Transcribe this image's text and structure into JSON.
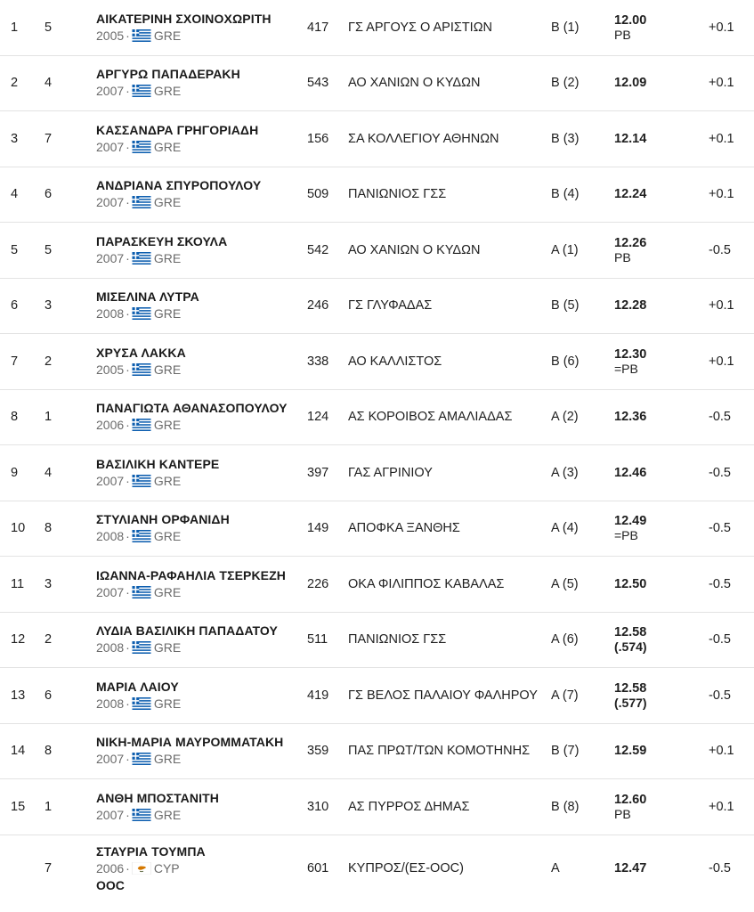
{
  "rows": [
    {
      "rank": "1",
      "lane": "5",
      "name": "ΑΙΚΑΤΕΡΙΝΗ ΣΧΟΙΝΟΧΩΡΙΤΗ",
      "year": "2005",
      "country": "GRE",
      "flag": "greece-flag",
      "bib": "417",
      "club": "ΓΣ ΑΡΓΟΥΣ Ο ΑΡΙΣΤΙΩΝ",
      "heat": "Β (1)",
      "mark": "12.00",
      "note": "PB",
      "wind": "+0.1"
    },
    {
      "rank": "2",
      "lane": "4",
      "name": "ΑΡΓΥΡΩ ΠΑΠΑΔΕΡΑΚΗ",
      "year": "2007",
      "country": "GRE",
      "flag": "greece-flag",
      "bib": "543",
      "club": "ΑΟ ΧΑΝΙΩΝ Ο ΚΥΔΩΝ",
      "heat": "Β (2)",
      "mark": "12.09",
      "note": "",
      "wind": "+0.1"
    },
    {
      "rank": "3",
      "lane": "7",
      "name": "ΚΑΣΣΑΝΔΡΑ ΓΡΗΓΟΡΙΑΔΗ",
      "year": "2007",
      "country": "GRE",
      "flag": "greece-flag",
      "bib": "156",
      "club": "ΣΑ ΚΟΛΛΕΓΙΟΥ ΑΘΗΝΩΝ",
      "heat": "Β (3)",
      "mark": "12.14",
      "note": "",
      "wind": "+0.1"
    },
    {
      "rank": "4",
      "lane": "6",
      "name": "ΑΝΔΡΙΑΝΑ ΣΠΥΡΟΠΟΥΛΟΥ",
      "year": "2007",
      "country": "GRE",
      "flag": "greece-flag",
      "bib": "509",
      "club": "ΠΑΝΙΩΝΙΟΣ ΓΣΣ",
      "heat": "Β (4)",
      "mark": "12.24",
      "note": "",
      "wind": "+0.1"
    },
    {
      "rank": "5",
      "lane": "5",
      "name": "ΠΑΡΑΣΚΕΥΗ ΣΚΟΥΛΑ",
      "year": "2007",
      "country": "GRE",
      "flag": "greece-flag",
      "bib": "542",
      "club": "ΑΟ ΧΑΝΙΩΝ Ο ΚΥΔΩΝ",
      "heat": "Α (1)",
      "mark": "12.26",
      "note": "PB",
      "wind": "-0.5"
    },
    {
      "rank": "6",
      "lane": "3",
      "name": "ΜΙΣΕΛΙΝΑ ΛΥΤΡΑ",
      "year": "2008",
      "country": "GRE",
      "flag": "greece-flag",
      "bib": "246",
      "club": "ΓΣ ΓΛΥΦΑΔΑΣ",
      "heat": "Β (5)",
      "mark": "12.28",
      "note": "",
      "wind": "+0.1"
    },
    {
      "rank": "7",
      "lane": "2",
      "name": "ΧΡΥΣΑ ΛΑΚΚΑ",
      "year": "2005",
      "country": "GRE",
      "flag": "greece-flag",
      "bib": "338",
      "club": "ΑΟ ΚΑΛΛΙΣΤΟΣ",
      "heat": "Β (6)",
      "mark": "12.30",
      "note": "=PB",
      "wind": "+0.1"
    },
    {
      "rank": "8",
      "lane": "1",
      "name": "ΠΑΝΑΓΙΩΤΑ ΑΘΑΝΑΣΟΠΟΥΛΟΥ",
      "year": "2006",
      "country": "GRE",
      "flag": "greece-flag",
      "bib": "124",
      "club": "ΑΣ ΚΟΡΟΙΒΟΣ ΑΜΑΛΙΑΔΑΣ",
      "heat": "Α (2)",
      "mark": "12.36",
      "note": "",
      "wind": "-0.5"
    },
    {
      "rank": "9",
      "lane": "4",
      "name": "ΒΑΣΙΛΙΚΗ ΚΑΝΤΕΡΕ",
      "year": "2007",
      "country": "GRE",
      "flag": "greece-flag",
      "bib": "397",
      "club": "ΓΑΣ ΑΓΡΙΝΙΟΥ",
      "heat": "Α (3)",
      "mark": "12.46",
      "note": "",
      "wind": "-0.5"
    },
    {
      "rank": "10",
      "lane": "8",
      "name": "ΣΤΥΛΙΑΝΗ ΟΡΦΑΝΙΔΗ",
      "year": "2008",
      "country": "GRE",
      "flag": "greece-flag",
      "bib": "149",
      "club": "ΑΠΟΦΚΑ ΞΑΝΘΗΣ",
      "heat": "Α (4)",
      "mark": "12.49",
      "note": "=PB",
      "wind": "-0.5"
    },
    {
      "rank": "11",
      "lane": "3",
      "name": "ΙΩΑΝΝΑ-ΡΑΦΑΗΛΙΑ ΤΣΕΡΚΕΖΗ",
      "year": "2007",
      "country": "GRE",
      "flag": "greece-flag",
      "bib": "226",
      "club": "ΟΚΑ ΦΙΛΙΠΠΟΣ ΚΑΒΑΛΑΣ",
      "heat": "Α (5)",
      "mark": "12.50",
      "note": "",
      "wind": "-0.5"
    },
    {
      "rank": "12",
      "lane": "2",
      "name": "ΛΥΔΙΑ ΒΑΣΙΛΙΚΗ ΠΑΠΑΔΑΤΟΥ",
      "year": "2008",
      "country": "GRE",
      "flag": "greece-flag",
      "bib": "511",
      "club": "ΠΑΝΙΩΝΙΟΣ ΓΣΣ",
      "heat": "Α (6)",
      "mark": "12.58",
      "note": "(.574)",
      "wind": "-0.5"
    },
    {
      "rank": "13",
      "lane": "6",
      "name": "ΜΑΡΙΑ ΛΑΙΟΥ",
      "year": "2008",
      "country": "GRE",
      "flag": "greece-flag",
      "bib": "419",
      "club": "ΓΣ ΒΕΛΟΣ ΠΑΛΑΙΟΥ ΦΑΛΗΡΟΥ",
      "heat": "Α (7)",
      "mark": "12.58",
      "note": "(.577)",
      "wind": "-0.5"
    },
    {
      "rank": "14",
      "lane": "8",
      "name": "ΝΙΚΗ-ΜΑΡΙΑ ΜΑΥΡΟΜΜΑΤΑΚΗ",
      "year": "2007",
      "country": "GRE",
      "flag": "greece-flag",
      "bib": "359",
      "club": "ΠΑΣ ΠΡΩΤ/ΤΩΝ ΚΟΜΟΤΗΝΗΣ",
      "heat": "Β (7)",
      "mark": "12.59",
      "note": "",
      "wind": "+0.1"
    },
    {
      "rank": "15",
      "lane": "1",
      "name": "ΑΝΘΗ ΜΠΟΣΤΑΝΙΤΗ",
      "year": "2007",
      "country": "GRE",
      "flag": "greece-flag",
      "bib": "310",
      "club": "ΑΣ ΠΥΡΡΟΣ ΔΗΜΑΣ",
      "heat": "Β (8)",
      "mark": "12.60",
      "note": "PB",
      "wind": "+0.1"
    },
    {
      "rank": "",
      "lane": "7",
      "name": "ΣΤΑΥΡΙΑ ΤΟΥΜΠΑ",
      "year": "2006",
      "country": "CYP",
      "flag": "cyprus-flag",
      "bib": "601",
      "club": "ΚΥΠΡΟΣ/(ΕΣ-ΟΟC)",
      "heat": "Α",
      "mark": "12.47",
      "note": "",
      "wind": "-0.5",
      "status": "OOC"
    }
  ],
  "separator": "·"
}
